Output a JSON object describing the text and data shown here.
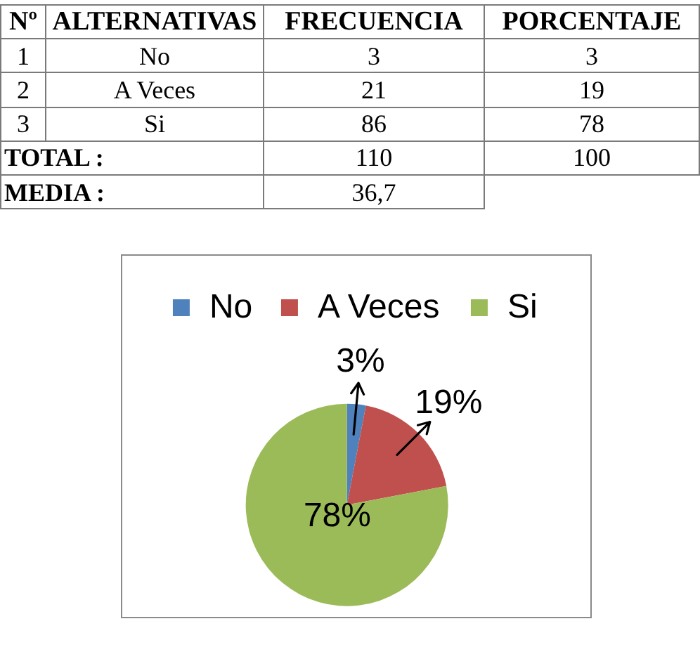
{
  "chart_data": [
    {
      "type": "other",
      "categories": [
        "Nº",
        "ALTERNATIVAS",
        "FRECUENCIA",
        "PORCENTAJE"
      ],
      "cell_labels": [
        [
          "1",
          "No",
          "3",
          "3"
        ],
        [
          "2",
          "A Veces",
          "21",
          "19"
        ],
        [
          "3",
          "Si",
          "86",
          "78"
        ],
        [
          "TOTAL :",
          null,
          "110",
          "100"
        ],
        [
          "MEDIA :",
          null,
          "36,7",
          null
        ]
      ]
    },
    {
      "type": "pie",
      "categories": [
        "No",
        "A Veces",
        "Si"
      ],
      "values": [
        3,
        19,
        78
      ],
      "colors": [
        "#4f81bd",
        "#c0504d",
        "#9bbb59"
      ],
      "value_labels": [
        "3%",
        "19%",
        "78%"
      ],
      "legend": "top"
    }
  ]
}
